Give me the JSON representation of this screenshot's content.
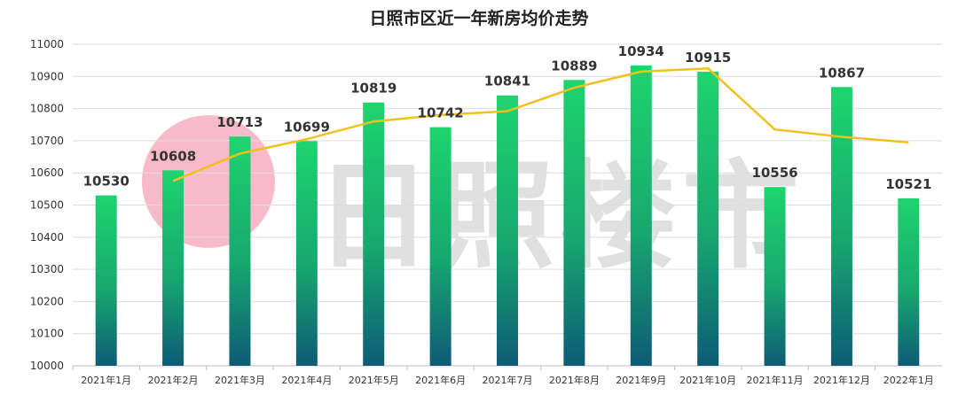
{
  "chart_data": {
    "type": "bar",
    "title": "日照市区近一年新房均价走势",
    "categories": [
      "2021年1月",
      "2021年2月",
      "2021年3月",
      "2021年4月",
      "2021年5月",
      "2021年6月",
      "2021年7月",
      "2021年8月",
      "2021年9月",
      "2021年10月",
      "2021年11月",
      "2021年12月",
      "2022年1月"
    ],
    "values": [
      10530,
      10608,
      10713,
      10699,
      10819,
      10742,
      10841,
      10889,
      10934,
      10915,
      10556,
      10867,
      10521
    ],
    "trendline": [
      null,
      10575,
      10660,
      10705,
      10760,
      10780,
      10792,
      10865,
      10915,
      10925,
      10735,
      10712,
      10695
    ],
    "ylim": [
      10000,
      11000
    ],
    "yticks": [
      10000,
      10100,
      10200,
      10300,
      10400,
      10500,
      10600,
      10700,
      10800,
      10900,
      11000
    ],
    "grid": true,
    "xlabel": "",
    "ylabel": "",
    "colors": {
      "bar_top": "#1ed46e",
      "bar_bottom": "#0e5b76",
      "trendline": "#f2c01e",
      "grid": "#dcdcdc"
    }
  },
  "watermark": {
    "text": "日照楼市"
  }
}
